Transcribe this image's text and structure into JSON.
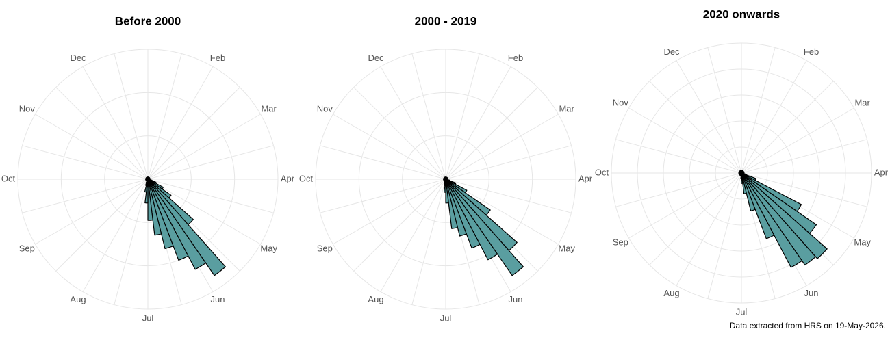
{
  "chart_data": [
    {
      "type": "polar_bar",
      "title": "Before 2000",
      "color": "#5a9ea0",
      "xlim": [
        0,
        52
      ],
      "xticks": [
        {
          "value": 4.333,
          "label": "Feb"
        },
        {
          "value": 8.667,
          "label": "Mar"
        },
        {
          "value": 13,
          "label": "Apr"
        },
        {
          "value": 17.333,
          "label": "May"
        },
        {
          "value": 21.667,
          "label": "Jun"
        },
        {
          "value": 26,
          "label": "Jul"
        },
        {
          "value": 30.333,
          "label": "Aug"
        },
        {
          "value": 34.667,
          "label": "Sep"
        },
        {
          "value": 39,
          "label": "Oct"
        },
        {
          "value": 43.333,
          "label": "Nov"
        },
        {
          "value": 47.667,
          "label": "Dec"
        }
      ],
      "ylim": [
        0,
        60
      ],
      "yticks": [
        20,
        40,
        60
      ],
      "values": [
        1,
        1,
        1,
        1,
        1,
        1,
        1,
        1,
        1,
        1,
        1,
        1,
        1,
        1,
        1,
        2,
        4,
        8,
        13,
        28,
        54,
        47,
        40,
        33,
        26,
        19,
        11,
        6,
        3,
        2,
        1,
        1,
        1,
        1,
        1,
        1,
        1,
        1,
        1,
        1,
        1,
        1,
        1,
        1,
        1,
        1,
        1,
        1,
        1,
        1,
        1,
        1
      ]
    },
    {
      "type": "polar_bar",
      "title": "2000 - 2019",
      "color": "#5a9ea0",
      "xlim": [
        0,
        52
      ],
      "xticks": [
        {
          "value": 4.333,
          "label": "Feb"
        },
        {
          "value": 8.667,
          "label": "Mar"
        },
        {
          "value": 13,
          "label": "Apr"
        },
        {
          "value": 17.333,
          "label": "May"
        },
        {
          "value": 21.667,
          "label": "Jun"
        },
        {
          "value": 26,
          "label": "Jul"
        },
        {
          "value": 30.333,
          "label": "Aug"
        },
        {
          "value": 34.667,
          "label": "Sep"
        },
        {
          "value": 39,
          "label": "Oct"
        },
        {
          "value": 43.333,
          "label": "Nov"
        },
        {
          "value": 47.667,
          "label": "Dec"
        }
      ],
      "ylim": [
        0,
        60
      ],
      "yticks": [
        20,
        40,
        60
      ],
      "values": [
        1,
        1,
        1,
        1,
        1,
        1,
        1,
        1,
        1,
        1,
        1,
        1,
        1,
        1,
        1,
        2,
        5,
        11,
        25,
        44,
        54,
        42,
        34,
        27,
        23,
        11,
        6,
        3,
        2,
        1,
        1,
        1,
        1,
        1,
        1,
        1,
        1,
        1,
        1,
        1,
        1,
        1,
        1,
        1,
        1,
        1,
        1,
        1,
        1,
        1,
        1,
        1
      ]
    },
    {
      "type": "polar_bar",
      "title": "2020 onwards",
      "color": "#5a9ea0",
      "xlim": [
        0,
        52
      ],
      "xticks": [
        {
          "value": 4.333,
          "label": "Feb"
        },
        {
          "value": 8.667,
          "label": "Mar"
        },
        {
          "value": 13,
          "label": "Apr"
        },
        {
          "value": 17.333,
          "label": "May"
        },
        {
          "value": 21.667,
          "label": "Jun"
        },
        {
          "value": 26,
          "label": "Jul"
        },
        {
          "value": 30.333,
          "label": "Aug"
        },
        {
          "value": 34.667,
          "label": "Sep"
        },
        {
          "value": 39,
          "label": "Oct"
        },
        {
          "value": 43.333,
          "label": "Nov"
        },
        {
          "value": 47.667,
          "label": "Dec"
        }
      ],
      "ylim": [
        0,
        50
      ],
      "yticks": [
        10,
        20,
        30,
        40,
        50
      ],
      "values": [
        1,
        1,
        1,
        1,
        1,
        1,
        1,
        1,
        1,
        1,
        1,
        1,
        1,
        1,
        1,
        2,
        6,
        26,
        35,
        44,
        43,
        41,
        27,
        15,
        8,
        4,
        2,
        1,
        1,
        1,
        1,
        1,
        1,
        1,
        1,
        1,
        1,
        1,
        1,
        1,
        1,
        1,
        1,
        1,
        1,
        1,
        1,
        1,
        1,
        1,
        1,
        1
      ]
    }
  ],
  "caption": "Data extracted from HRS on 19-May-2026."
}
